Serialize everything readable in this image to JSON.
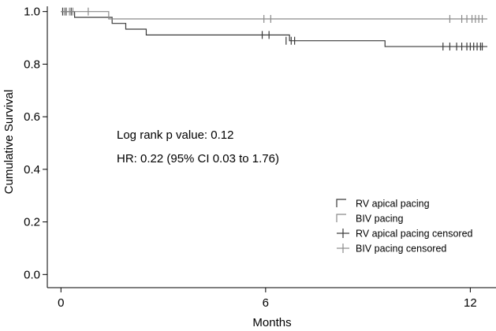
{
  "chart_data": {
    "type": "line",
    "subtype": "kaplan-meier",
    "title": "",
    "xlabel": "Months",
    "ylabel": "Cumulative Survival",
    "xlim": [
      -0.4,
      12.8
    ],
    "ylim": [
      -0.05,
      1.02
    ],
    "x_ticks": [
      0,
      6,
      12
    ],
    "x_tick_labels": [
      "0",
      "6",
      "12"
    ],
    "y_ticks": [
      0.0,
      0.2,
      0.4,
      0.6,
      0.8,
      1.0
    ],
    "y_tick_labels": [
      "0.0",
      "0.2",
      "0.4",
      "0.6",
      "0.8",
      "1.0"
    ],
    "grid": false,
    "legend_position": "bottom-right",
    "annotations": [
      "Log rank p value: 0.12",
      "HR: 0.22 (95% CI 0.03 to 1.76)"
    ],
    "legend": [
      {
        "label": "RV apical pacing",
        "symbol": "step",
        "series": 0
      },
      {
        "label": "BIV pacing",
        "symbol": "step",
        "series": 1
      },
      {
        "label": "RV apical pacing censored",
        "symbol": "cross",
        "series": 0
      },
      {
        "label": "BIV pacing censored",
        "symbol": "cross",
        "series": 1
      }
    ],
    "series": [
      {
        "name": "RV apical pacing",
        "color": "#3a3a3a",
        "steps": [
          [
            0,
            1.0
          ],
          [
            0.4,
            0.978
          ],
          [
            1.5,
            0.955
          ],
          [
            1.9,
            0.933
          ],
          [
            2.5,
            0.911
          ],
          [
            3.0,
            0.911
          ],
          [
            6.7,
            0.889
          ],
          [
            9.5,
            0.867
          ],
          [
            12.5,
            0.867
          ]
        ],
        "censored": [
          [
            0.05,
            1.0
          ],
          [
            0.15,
            1.0
          ],
          [
            0.3,
            1.0
          ],
          [
            5.9,
            0.911
          ],
          [
            6.1,
            0.911
          ],
          [
            6.6,
            0.889
          ],
          [
            6.75,
            0.889
          ],
          [
            6.85,
            0.889
          ],
          [
            11.2,
            0.867
          ],
          [
            11.4,
            0.867
          ],
          [
            11.6,
            0.867
          ],
          [
            11.75,
            0.867
          ],
          [
            11.9,
            0.867
          ],
          [
            12.0,
            0.867
          ],
          [
            12.1,
            0.867
          ],
          [
            12.2,
            0.867
          ],
          [
            12.3,
            0.867
          ],
          [
            12.35,
            0.867
          ]
        ]
      },
      {
        "name": "BIV pacing",
        "color": "#8a8a8a",
        "steps": [
          [
            0,
            1.0
          ],
          [
            1.4,
            0.972
          ],
          [
            12.5,
            0.972
          ]
        ],
        "censored": [
          [
            0.1,
            1.0
          ],
          [
            0.25,
            1.0
          ],
          [
            0.35,
            1.0
          ],
          [
            0.8,
            1.0
          ],
          [
            5.95,
            0.972
          ],
          [
            6.15,
            0.972
          ],
          [
            11.4,
            0.972
          ],
          [
            11.75,
            0.972
          ],
          [
            11.9,
            0.972
          ],
          [
            12.05,
            0.972
          ],
          [
            12.15,
            0.972
          ],
          [
            12.25,
            0.972
          ],
          [
            12.35,
            0.972
          ]
        ]
      }
    ]
  }
}
